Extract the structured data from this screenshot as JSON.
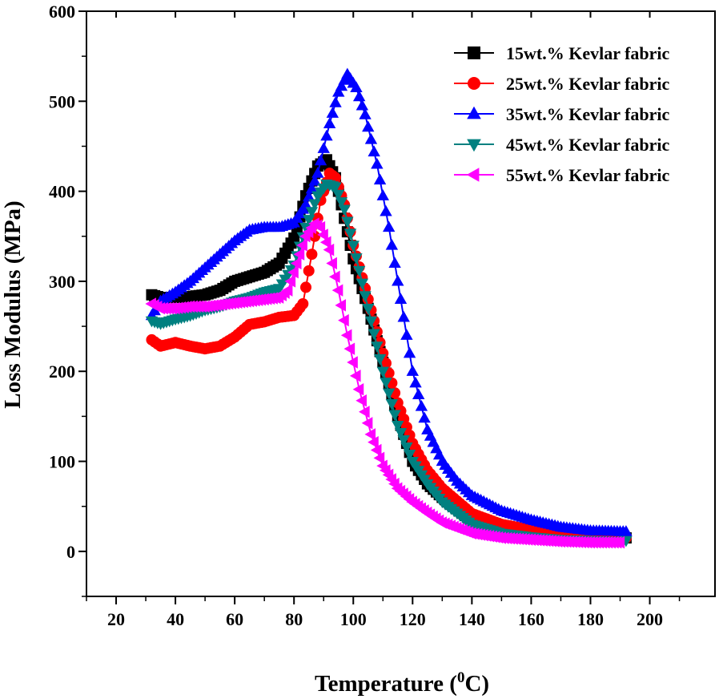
{
  "chart_data": {
    "type": "line",
    "title": "",
    "xlabel": "Temperature (",
    "xlabel_sup": "0",
    "xlabel_suffix": "C)",
    "ylabel": "Loss Modulus (MPa)",
    "xlim": [
      10,
      222
    ],
    "ylim": [
      -50,
      600
    ],
    "xticks": [
      20,
      40,
      60,
      80,
      100,
      120,
      140,
      160,
      180,
      200
    ],
    "yticks": [
      0,
      100,
      200,
      300,
      400,
      500,
      600
    ],
    "legend_position": "top-right",
    "series": [
      {
        "name": "15wt.% Kevlar fabric",
        "color": "#000000",
        "marker": "square",
        "points": [
          [
            32,
            285
          ],
          [
            35,
            282
          ],
          [
            40,
            282
          ],
          [
            45,
            283
          ],
          [
            50,
            285
          ],
          [
            55,
            290
          ],
          [
            60,
            300
          ],
          [
            65,
            305
          ],
          [
            70,
            310
          ],
          [
            75,
            320
          ],
          [
            80,
            348
          ],
          [
            84,
            395
          ],
          [
            88,
            428
          ],
          [
            91,
            435
          ],
          [
            94,
            415
          ],
          [
            97,
            370
          ],
          [
            100,
            325
          ],
          [
            105,
            270
          ],
          [
            110,
            210
          ],
          [
            115,
            150
          ],
          [
            120,
            100
          ],
          [
            125,
            75
          ],
          [
            130,
            60
          ],
          [
            140,
            35
          ],
          [
            150,
            27
          ],
          [
            160,
            22
          ],
          [
            170,
            18
          ],
          [
            180,
            16
          ],
          [
            190,
            15
          ],
          [
            192,
            15
          ]
        ]
      },
      {
        "name": "25wt.% Kevlar fabric",
        "color": "#ff0000",
        "marker": "circle",
        "points": [
          [
            32,
            235
          ],
          [
            35,
            228
          ],
          [
            40,
            232
          ],
          [
            45,
            228
          ],
          [
            50,
            225
          ],
          [
            55,
            228
          ],
          [
            60,
            238
          ],
          [
            65,
            252
          ],
          [
            70,
            255
          ],
          [
            75,
            260
          ],
          [
            80,
            262
          ],
          [
            83,
            275
          ],
          [
            86,
            330
          ],
          [
            89,
            390
          ],
          [
            92,
            420
          ],
          [
            94,
            415
          ],
          [
            97,
            385
          ],
          [
            100,
            340
          ],
          [
            105,
            280
          ],
          [
            110,
            220
          ],
          [
            115,
            165
          ],
          [
            120,
            120
          ],
          [
            125,
            90
          ],
          [
            130,
            70
          ],
          [
            140,
            42
          ],
          [
            150,
            30
          ],
          [
            160,
            24
          ],
          [
            170,
            20
          ],
          [
            180,
            17
          ],
          [
            190,
            16
          ],
          [
            192,
            15
          ]
        ]
      },
      {
        "name": "35wt.% Kevlar fabric",
        "color": "#0000ff",
        "marker": "triangle-up",
        "points": [
          [
            32,
            262
          ],
          [
            35,
            278
          ],
          [
            40,
            288
          ],
          [
            45,
            300
          ],
          [
            50,
            315
          ],
          [
            55,
            330
          ],
          [
            60,
            345
          ],
          [
            65,
            357
          ],
          [
            70,
            360
          ],
          [
            75,
            360
          ],
          [
            80,
            365
          ],
          [
            84,
            385
          ],
          [
            88,
            420
          ],
          [
            92,
            475
          ],
          [
            95,
            510
          ],
          [
            98,
            530
          ],
          [
            101,
            515
          ],
          [
            104,
            485
          ],
          [
            108,
            430
          ],
          [
            112,
            360
          ],
          [
            116,
            280
          ],
          [
            120,
            200
          ],
          [
            125,
            135
          ],
          [
            130,
            100
          ],
          [
            135,
            78
          ],
          [
            140,
            62
          ],
          [
            150,
            45
          ],
          [
            160,
            35
          ],
          [
            170,
            27
          ],
          [
            180,
            23
          ],
          [
            190,
            22
          ],
          [
            192,
            22
          ]
        ]
      },
      {
        "name": "45wt.% Kevlar fabric",
        "color": "#008080",
        "marker": "triangle-down",
        "points": [
          [
            32,
            256
          ],
          [
            35,
            253
          ],
          [
            40,
            258
          ],
          [
            45,
            262
          ],
          [
            50,
            268
          ],
          [
            55,
            272
          ],
          [
            60,
            278
          ],
          [
            65,
            282
          ],
          [
            70,
            288
          ],
          [
            75,
            292
          ],
          [
            80,
            318
          ],
          [
            84,
            360
          ],
          [
            88,
            395
          ],
          [
            91,
            408
          ],
          [
            94,
            405
          ],
          [
            97,
            380
          ],
          [
            100,
            340
          ],
          [
            105,
            270
          ],
          [
            110,
            200
          ],
          [
            115,
            140
          ],
          [
            120,
            100
          ],
          [
            125,
            75
          ],
          [
            130,
            55
          ],
          [
            140,
            30
          ],
          [
            150,
            20
          ],
          [
            160,
            16
          ],
          [
            170,
            13
          ],
          [
            180,
            12
          ],
          [
            190,
            11
          ],
          [
            192,
            12
          ]
        ]
      },
      {
        "name": "55wt.% Kevlar fabric",
        "color": "#ff00ff",
        "marker": "triangle-left",
        "points": [
          [
            32,
            275
          ],
          [
            35,
            270
          ],
          [
            40,
            270
          ],
          [
            45,
            272
          ],
          [
            50,
            272
          ],
          [
            55,
            274
          ],
          [
            60,
            276
          ],
          [
            65,
            278
          ],
          [
            70,
            280
          ],
          [
            75,
            282
          ],
          [
            78,
            290
          ],
          [
            81,
            320
          ],
          [
            84,
            350
          ],
          [
            87,
            364
          ],
          [
            89,
            360
          ],
          [
            92,
            335
          ],
          [
            95,
            290
          ],
          [
            98,
            240
          ],
          [
            102,
            180
          ],
          [
            106,
            130
          ],
          [
            110,
            95
          ],
          [
            115,
            70
          ],
          [
            120,
            55
          ],
          [
            125,
            43
          ],
          [
            130,
            32
          ],
          [
            140,
            20
          ],
          [
            150,
            15
          ],
          [
            160,
            13
          ],
          [
            170,
            11
          ],
          [
            180,
            10
          ],
          [
            190,
            10
          ]
        ]
      }
    ]
  }
}
